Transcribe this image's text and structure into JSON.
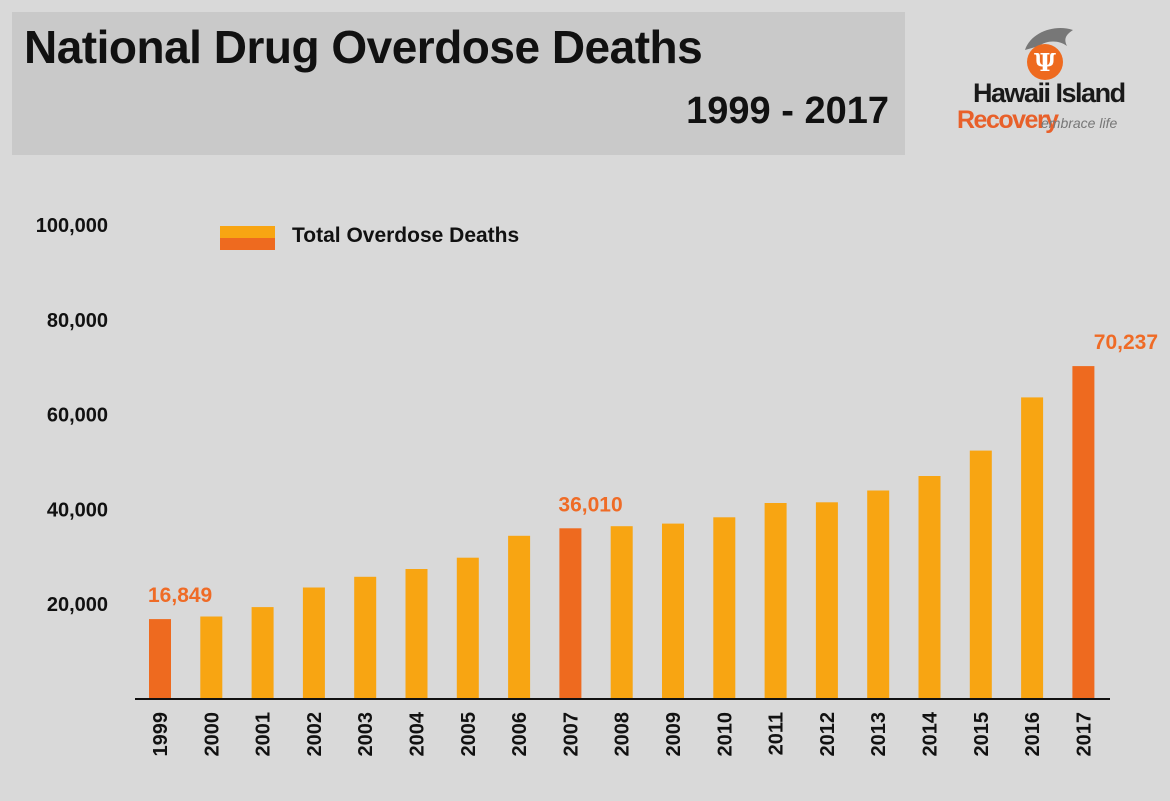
{
  "header": {
    "title": "National Drug Overdose Deaths",
    "subtitle": "1999 - 2017"
  },
  "logo": {
    "line1": "Hawaii Island",
    "line2": "Recovery",
    "tagline": "embrace life",
    "icon": "dolphin-psi-icon"
  },
  "colors": {
    "bar": "#f8a512",
    "highlight": "#ee6a1f",
    "label": "#ef6b26",
    "axis": "#111111"
  },
  "chart_data": {
    "type": "bar",
    "title": "National Drug Overdose Deaths",
    "subtitle": "1999 - 2017",
    "xlabel": "",
    "ylabel": "",
    "ylim": [
      0,
      100000
    ],
    "yticks": [
      20000,
      40000,
      60000,
      80000,
      100000
    ],
    "ytick_labels": [
      "20,000",
      "40,000",
      "60,000",
      "80,000",
      "100,000"
    ],
    "legend": {
      "label": "Total Overdose Deaths",
      "position": "top-left"
    },
    "categories": [
      "1999",
      "2000",
      "2001",
      "2002",
      "2003",
      "2004",
      "2005",
      "2006",
      "2007",
      "2008",
      "2009",
      "2010",
      "2011",
      "2012",
      "2013",
      "2014",
      "2015",
      "2016",
      "2017"
    ],
    "series": [
      {
        "name": "Total Overdose Deaths",
        "values": [
          16849,
          17415,
          19394,
          23518,
          25785,
          27424,
          29813,
          34425,
          36010,
          36450,
          37004,
          38329,
          41340,
          41502,
          43982,
          47055,
          52404,
          63632,
          70237
        ]
      }
    ],
    "highlighted": [
      "1999",
      "2007",
      "2017"
    ],
    "data_labels": [
      {
        "category": "1999",
        "text": "16,849"
      },
      {
        "category": "2007",
        "text": "36,010"
      },
      {
        "category": "2017",
        "text": "70,237"
      }
    ]
  }
}
